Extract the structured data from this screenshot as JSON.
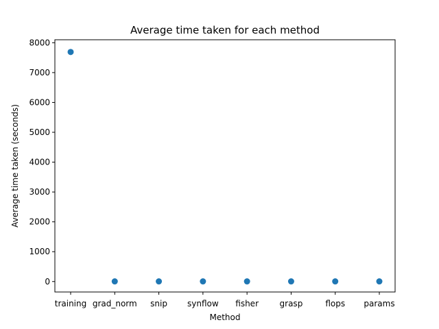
{
  "chart_data": {
    "type": "scatter",
    "title": "Average time taken for each method",
    "xlabel": "Method",
    "ylabel": "Average time taken (seconds)",
    "categories": [
      "training",
      "grad_norm",
      "snip",
      "synflow",
      "fisher",
      "grasp",
      "flops",
      "params"
    ],
    "values": [
      7690,
      5,
      5,
      5,
      5,
      5,
      5,
      5
    ],
    "yticks": [
      0,
      1000,
      2000,
      3000,
      4000,
      5000,
      6000,
      7000,
      8000
    ],
    "ylim": [
      -350,
      8100
    ],
    "grid": false,
    "legend": "none",
    "marker_color": "#1f77b4"
  }
}
